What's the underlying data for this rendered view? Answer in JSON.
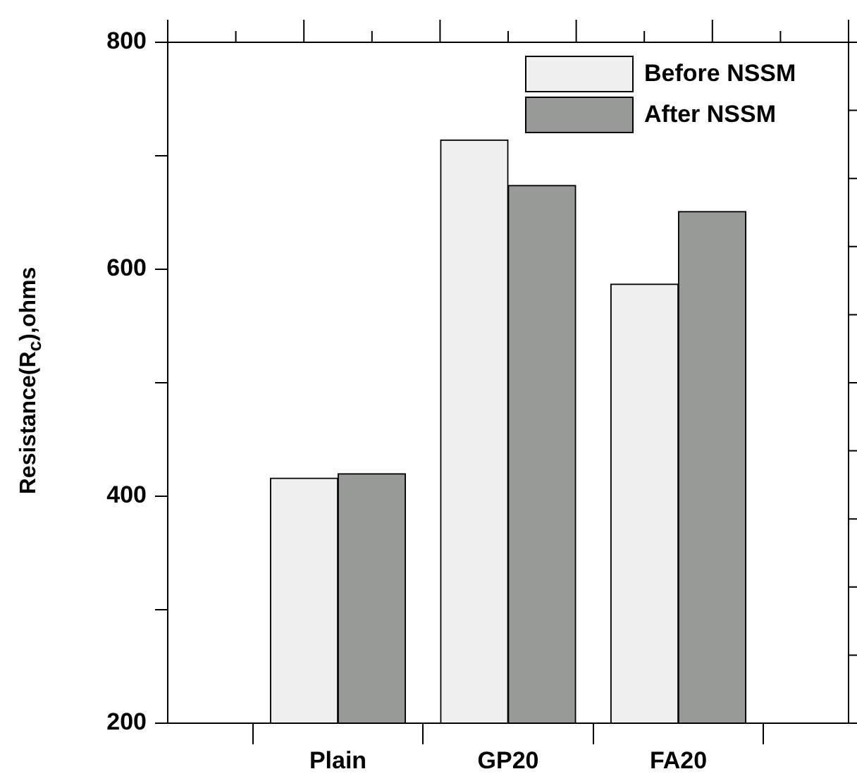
{
  "chart_data": {
    "type": "bar",
    "ylabel": "Resistance(R$_{c}$),ohms",
    "categories": [
      "Plain",
      "GP20",
      "FA20"
    ],
    "series": [
      {
        "name": "Before NSSM",
        "color": "#f0f0f0",
        "values": [
          416,
          714,
          587
        ]
      },
      {
        "name": "After NSSM",
        "color": "#989a98",
        "values": [
          420,
          674,
          651
        ]
      }
    ],
    "ylim": [
      200,
      800
    ],
    "yticks": [
      200,
      400,
      600,
      800
    ],
    "grid": false,
    "legend": "top right"
  }
}
